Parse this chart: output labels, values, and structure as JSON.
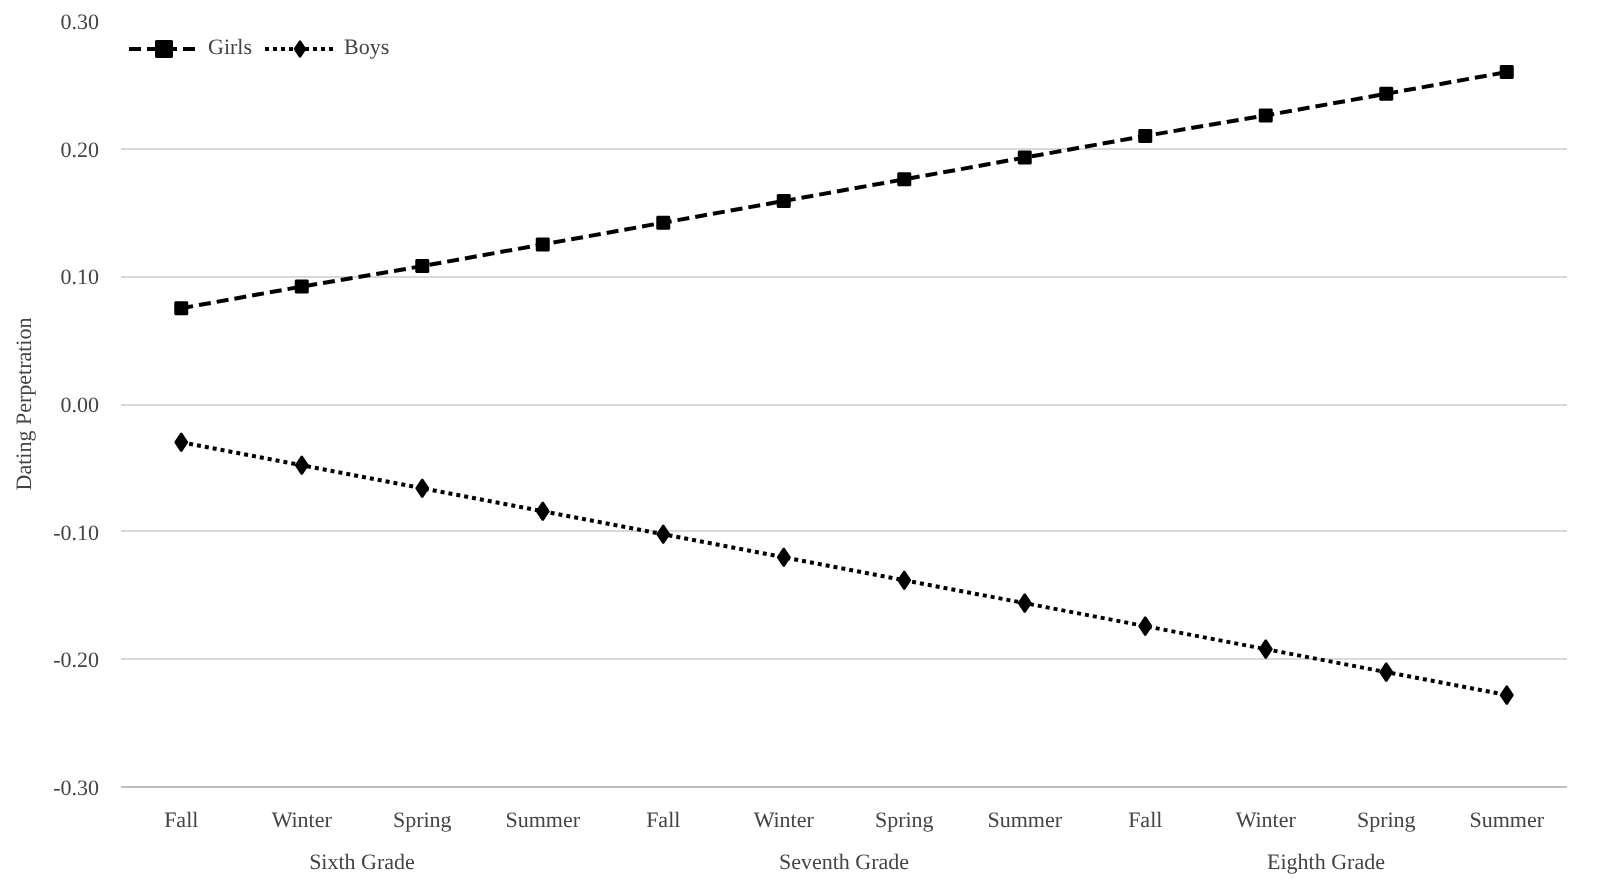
{
  "chart_data": {
    "type": "line",
    "ylabel": "Dating Perpetration",
    "categories": [
      "Fall",
      "Winter",
      "Spring",
      "Summer",
      "Fall",
      "Winter",
      "Spring",
      "Summer",
      "Fall",
      "Winter",
      "Spring",
      "Summer"
    ],
    "annotations": [
      "Sixth Grade",
      "Seventh Grade",
      "Eighth Grade"
    ],
    "series": [
      {
        "name": "Girls",
        "color": "#000000",
        "marker": "square",
        "line_style": "dashed",
        "values": [
          0.075,
          0.092,
          0.108,
          0.125,
          0.142,
          0.159,
          0.176,
          0.193,
          0.21,
          0.226,
          0.243,
          0.26
        ]
      },
      {
        "name": "Boys",
        "color": "#000000",
        "marker": "diamond",
        "line_style": "dotted",
        "values": [
          -0.03,
          -0.048,
          -0.066,
          -0.084,
          -0.102,
          -0.12,
          -0.138,
          -0.156,
          -0.174,
          -0.192,
          -0.21,
          -0.228
        ]
      }
    ],
    "ylim": [
      -0.3,
      0.3
    ],
    "yticks": [
      {
        "value": -0.3,
        "label": "-0.30"
      },
      {
        "value": -0.2,
        "label": "-0.20"
      },
      {
        "value": -0.1,
        "label": "-0.10"
      },
      {
        "value": 0,
        "label": "0.00"
      },
      {
        "value": 0.1,
        "label": "0.10"
      },
      {
        "value": 0.2,
        "label": "0.20"
      },
      {
        "value": 0.3,
        "label": "0.30"
      }
    ],
    "grid": "y",
    "legend": "top left"
  }
}
